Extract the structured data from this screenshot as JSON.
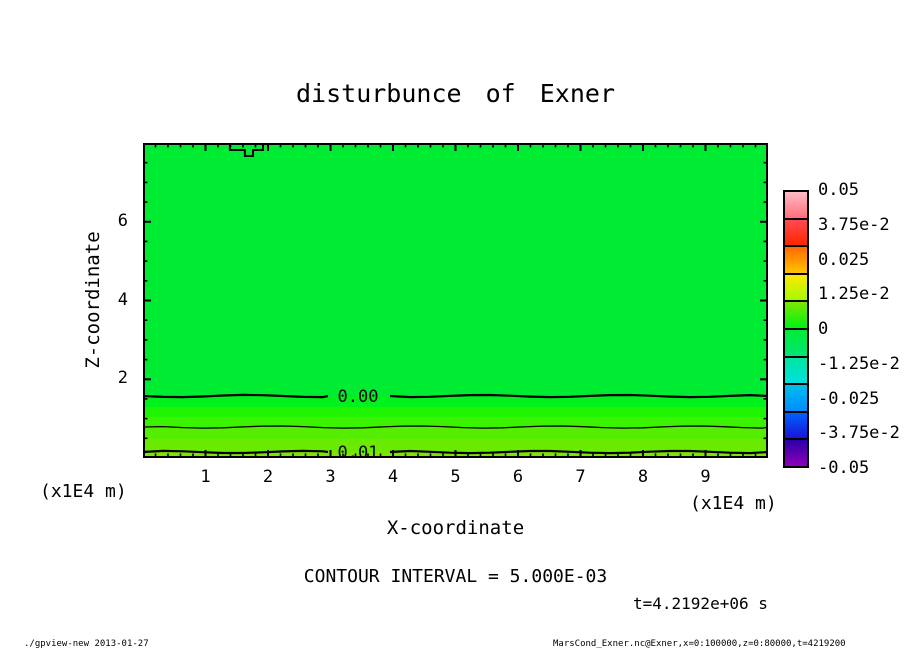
{
  "chart_data": {
    "type": "contour",
    "title": "disturbunce of Exner",
    "xlabel": "X-coordinate",
    "ylabel": "Z-coordinate",
    "x_unit_label": "(x1E4 m)",
    "y_unit_label": "(x1E4 m)",
    "xlim": [
      0,
      10
    ],
    "ylim": [
      0,
      8
    ],
    "xticks": [
      1,
      2,
      3,
      4,
      5,
      6,
      7,
      8,
      9
    ],
    "yticks": [
      2,
      4,
      6
    ],
    "x_minor_step": 0.2,
    "y_minor_step": 0.5,
    "contour_interval_label": "CONTOUR INTERVAL = 5.000E-03",
    "time_label": "t=4.2192e+06 s",
    "bands": [
      {
        "z_top": 8,
        "z_bottom": 1.574,
        "color": "#00EC33"
      },
      {
        "z_top": 1.574,
        "z_bottom": 1.295,
        "color": "#00F21C"
      },
      {
        "z_top": 1.295,
        "z_bottom": 1.041,
        "color": "#1FF500"
      },
      {
        "z_top": 1.041,
        "z_bottom": 0.787,
        "color": "#3BF200"
      },
      {
        "z_top": 0.787,
        "z_bottom": 0.483,
        "color": "#55EE00"
      },
      {
        "z_top": 0.483,
        "z_bottom": 0.152,
        "color": "#69EA00"
      },
      {
        "z_top": 0.152,
        "z_bottom": 0,
        "color": "#7CE600"
      }
    ],
    "contours": [
      {
        "z": 1.574,
        "label": "0.00",
        "label_x_units": 3.44,
        "major": true
      },
      {
        "z": 0.787,
        "label": "",
        "major": false
      },
      {
        "z": 0.152,
        "label": "0.01",
        "label_x_units": 3.44,
        "major": true
      }
    ],
    "top_contour_blip": {
      "x1": 1.39,
      "xm1": 1.63,
      "xm2": 1.76,
      "x2": 1.92,
      "d1": 7,
      "d2": 13
    },
    "colorbar": {
      "labels": [
        "0.05",
        "3.75e-2",
        "0.025",
        "1.25e-2",
        "0",
        "-1.25e-2",
        "-0.025",
        "-3.75e-2",
        "-0.05"
      ],
      "value_min": -0.05,
      "value_max": 0.05,
      "segments": [
        {
          "from": "#FFBAC4",
          "to": "#FF6F7A"
        },
        {
          "from": "#FF4A50",
          "to": "#FF2600"
        },
        {
          "from": "#FF6A00",
          "to": "#FFC300"
        },
        {
          "from": "#FFE800",
          "to": "#A4FA00"
        },
        {
          "from": "#7CE600",
          "to": "#00F214"
        },
        {
          "from": "#00EC33",
          "to": "#00E577"
        },
        {
          "from": "#00E6A0",
          "to": "#00E0E0"
        },
        {
          "from": "#00BFEA",
          "to": "#008CFF"
        },
        {
          "from": "#0060FF",
          "to": "#1A14D8"
        },
        {
          "from": "#2A00A8",
          "to": "#8E00B8"
        }
      ]
    }
  },
  "footer": {
    "left": "./gpview-new  2013-01-27",
    "right": "MarsCond_Exner.nc@Exner,x=0:100000,z=0:80000,t=4219200"
  }
}
